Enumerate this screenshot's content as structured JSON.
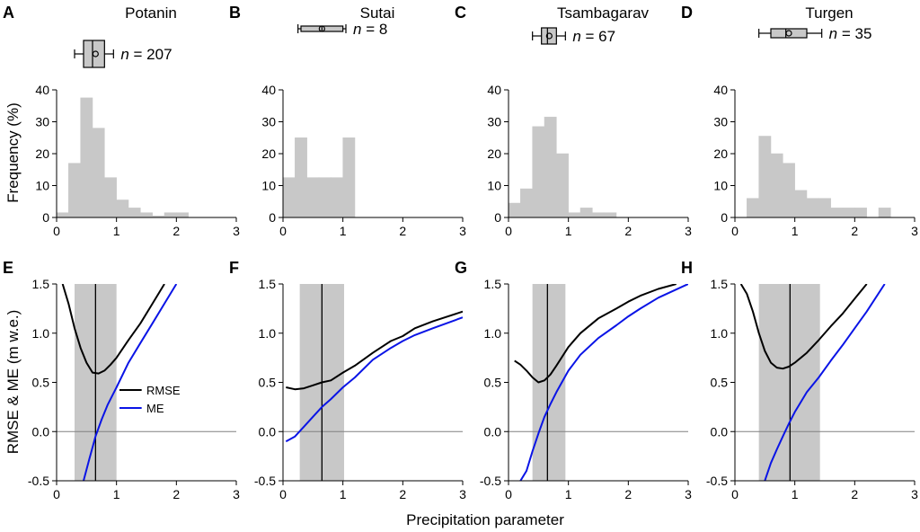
{
  "figure": {
    "ylabel_top": "Frequency (%)",
    "ylabel_bottom": "RMSE & ME (m w.e.)",
    "xlabel": "Precipitation parameter",
    "xticks": [
      "0",
      "1",
      "2",
      "3"
    ],
    "yticks_top": [
      "0",
      "10",
      "20",
      "30",
      "40"
    ],
    "yticks_bottom": [
      "-0.5",
      "0.0",
      "0.5",
      "1.0",
      "1.5"
    ],
    "legend": [
      {
        "name": "RMSE",
        "color": "#000000"
      },
      {
        "name": "ME",
        "color": "#0a14e6"
      }
    ],
    "colors": {
      "hist": "#c8c8c8",
      "shade": "#c8c8c8",
      "rmse": "#000000",
      "me": "#0a14e6"
    }
  },
  "chart_data": [
    {
      "type": "bar",
      "panel": "A",
      "title": "Potanin",
      "n_label": "= 207",
      "bin_width": 0.2,
      "bin_starts": [
        0,
        0.2,
        0.4,
        0.6,
        0.8,
        1.0,
        1.2,
        1.4,
        1.6,
        1.8,
        2.0
      ],
      "values": [
        1.5,
        17,
        37.5,
        28,
        12.5,
        5.5,
        3,
        1.5,
        0.5,
        1.5,
        1.5
      ],
      "xlim": [
        0,
        3
      ],
      "ylim": [
        0,
        40
      ],
      "boxplot": {
        "whisker_low": 0.3,
        "q1": 0.45,
        "median": 0.6,
        "mean": 0.65,
        "q3": 0.8,
        "whisker_high": 0.95
      }
    },
    {
      "type": "bar",
      "panel": "B",
      "title": "Sutai",
      "n_label": "= 8",
      "bin_width": 0.2,
      "bin_starts": [
        0,
        0.2,
        0.4,
        0.6,
        0.8,
        1.0
      ],
      "values": [
        12.5,
        25,
        12.5,
        12.5,
        12.5,
        25
      ],
      "xlim": [
        0,
        3
      ],
      "ylim": [
        0,
        40
      ],
      "boxplot": {
        "whisker_low": 0.25,
        "q1": 0.3,
        "median": 0.65,
        "mean": 0.65,
        "q3": 1.0,
        "whisker_high": 1.05
      }
    },
    {
      "type": "bar",
      "panel": "C",
      "title": "Tsambagarav",
      "n_label": "= 67",
      "bin_width": 0.2,
      "bin_starts": [
        0,
        0.2,
        0.4,
        0.6,
        0.8,
        1.0,
        1.2,
        1.4,
        1.6
      ],
      "values": [
        4.5,
        9,
        28.5,
        31.5,
        20,
        1.5,
        3,
        1.5,
        1.5
      ],
      "xlim": [
        0,
        3
      ],
      "ylim": [
        0,
        40
      ],
      "boxplot": {
        "whisker_low": 0.4,
        "q1": 0.55,
        "median": 0.65,
        "mean": 0.68,
        "q3": 0.8,
        "whisker_high": 0.95
      }
    },
    {
      "type": "bar",
      "panel": "D",
      "title": "Turgen",
      "n_label": "= 35",
      "bin_width": 0.2,
      "bin_starts": [
        0.2,
        0.4,
        0.6,
        0.8,
        1.0,
        1.2,
        1.4,
        1.6,
        1.8,
        2.0,
        2.4
      ],
      "values": [
        6,
        25.5,
        20,
        17,
        8.5,
        6,
        6,
        3,
        3,
        3,
        3
      ],
      "xlim": [
        0,
        3
      ],
      "ylim": [
        0,
        40
      ],
      "boxplot": {
        "whisker_low": 0.4,
        "q1": 0.6,
        "median": 0.85,
        "mean": 0.9,
        "q3": 1.2,
        "whisker_high": 1.45
      }
    },
    {
      "type": "line",
      "panel": "E",
      "xlim": [
        0,
        3
      ],
      "ylim": [
        -0.5,
        1.5
      ],
      "shade_range": [
        0.3,
        1.0
      ],
      "vline": 0.65,
      "hline": 0,
      "series": [
        {
          "name": "RMSE",
          "x": [
            0.1,
            0.2,
            0.3,
            0.4,
            0.5,
            0.6,
            0.7,
            0.8,
            0.9,
            1.0,
            1.2,
            1.4,
            1.6,
            1.8
          ],
          "y": [
            1.5,
            1.3,
            1.05,
            0.85,
            0.7,
            0.6,
            0.59,
            0.62,
            0.68,
            0.75,
            0.93,
            1.1,
            1.3,
            1.5
          ]
        },
        {
          "name": "ME",
          "x": [
            0.45,
            0.55,
            0.65,
            0.75,
            0.85,
            1.0,
            1.2,
            1.4,
            1.6,
            1.8,
            2.0
          ],
          "y": [
            -0.5,
            -0.27,
            -0.05,
            0.12,
            0.27,
            0.45,
            0.7,
            0.9,
            1.1,
            1.3,
            1.5
          ]
        }
      ]
    },
    {
      "type": "line",
      "panel": "F",
      "xlim": [
        0,
        3
      ],
      "ylim": [
        -0.5,
        1.5
      ],
      "shade_range": [
        0.28,
        1.02
      ],
      "vline": 0.65,
      "hline": 0,
      "series": [
        {
          "name": "RMSE",
          "x": [
            0.05,
            0.2,
            0.35,
            0.5,
            0.65,
            0.8,
            1.0,
            1.2,
            1.5,
            1.8,
            2.0,
            2.2,
            2.5,
            3.0
          ],
          "y": [
            0.45,
            0.43,
            0.44,
            0.47,
            0.5,
            0.52,
            0.6,
            0.67,
            0.8,
            0.92,
            0.97,
            1.05,
            1.12,
            1.22
          ]
        },
        {
          "name": "ME",
          "x": [
            0.05,
            0.2,
            0.35,
            0.5,
            0.65,
            0.8,
            1.0,
            1.2,
            1.5,
            1.8,
            2.0,
            2.2,
            2.5,
            3.0
          ],
          "y": [
            -0.1,
            -0.05,
            0.05,
            0.15,
            0.25,
            0.33,
            0.45,
            0.55,
            0.73,
            0.85,
            0.92,
            0.98,
            1.05,
            1.16
          ]
        }
      ]
    },
    {
      "type": "line",
      "panel": "G",
      "xlim": [
        0,
        3
      ],
      "ylim": [
        -0.5,
        1.5
      ],
      "shade_range": [
        0.4,
        0.95
      ],
      "vline": 0.65,
      "hline": 0,
      "series": [
        {
          "name": "RMSE",
          "x": [
            0.1,
            0.2,
            0.3,
            0.4,
            0.5,
            0.6,
            0.7,
            0.8,
            1.0,
            1.2,
            1.5,
            1.8,
            2.0,
            2.2,
            2.5,
            2.8
          ],
          "y": [
            0.72,
            0.68,
            0.62,
            0.55,
            0.5,
            0.52,
            0.58,
            0.67,
            0.86,
            1.0,
            1.15,
            1.25,
            1.32,
            1.38,
            1.45,
            1.5
          ]
        },
        {
          "name": "ME",
          "x": [
            0.2,
            0.3,
            0.4,
            0.5,
            0.6,
            0.7,
            0.8,
            1.0,
            1.2,
            1.5,
            1.8,
            2.0,
            2.2,
            2.5,
            3.0
          ],
          "y": [
            -0.5,
            -0.4,
            -0.2,
            -0.02,
            0.15,
            0.28,
            0.4,
            0.62,
            0.78,
            0.95,
            1.08,
            1.17,
            1.25,
            1.36,
            1.5
          ]
        }
      ]
    },
    {
      "type": "line",
      "panel": "H",
      "xlim": [
        0,
        3
      ],
      "ylim": [
        -0.5,
        1.5
      ],
      "shade_range": [
        0.4,
        1.42
      ],
      "vline": 0.92,
      "hline": 0,
      "series": [
        {
          "name": "RMSE",
          "x": [
            0.1,
            0.2,
            0.3,
            0.4,
            0.5,
            0.6,
            0.7,
            0.8,
            0.9,
            1.0,
            1.2,
            1.4,
            1.6,
            1.8,
            2.0,
            2.2
          ],
          "y": [
            1.5,
            1.4,
            1.22,
            1.0,
            0.82,
            0.7,
            0.65,
            0.64,
            0.66,
            0.7,
            0.8,
            0.93,
            1.07,
            1.2,
            1.35,
            1.5
          ]
        },
        {
          "name": "ME",
          "x": [
            0.5,
            0.6,
            0.7,
            0.8,
            0.9,
            1.0,
            1.2,
            1.4,
            1.6,
            1.8,
            2.0,
            2.2,
            2.5
          ],
          "y": [
            -0.5,
            -0.32,
            -0.18,
            -0.05,
            0.08,
            0.2,
            0.4,
            0.55,
            0.72,
            0.88,
            1.05,
            1.22,
            1.5
          ]
        }
      ]
    }
  ]
}
